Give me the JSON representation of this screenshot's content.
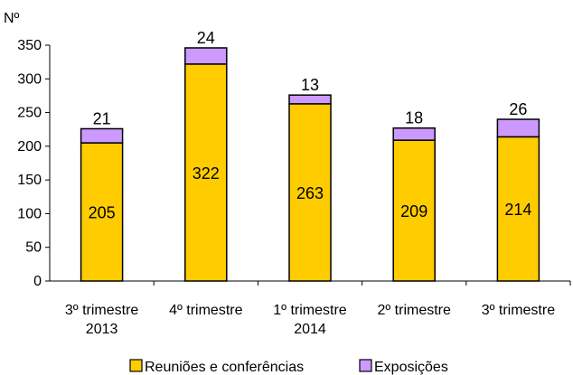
{
  "chart_data": {
    "type": "bar",
    "stacked": true,
    "ylabel": "Nº",
    "ylim": [
      0,
      350
    ],
    "yticks": [
      0,
      50,
      100,
      150,
      200,
      250,
      300,
      350
    ],
    "grid": false,
    "legend_position": "bottom",
    "categories": [
      [
        "3º trimestre",
        "2013"
      ],
      [
        "4º trimestre"
      ],
      [
        "1º trimestre",
        "2014"
      ],
      [
        "2º trimestre"
      ],
      [
        "3º trimestre"
      ]
    ],
    "series": [
      {
        "name": "Reuniões e conferências",
        "color": "#FFCC00",
        "values": [
          205,
          322,
          263,
          209,
          214
        ]
      },
      {
        "name": "Exposições",
        "color": "#CC99FF",
        "values": [
          21,
          24,
          13,
          18,
          26
        ]
      }
    ]
  }
}
